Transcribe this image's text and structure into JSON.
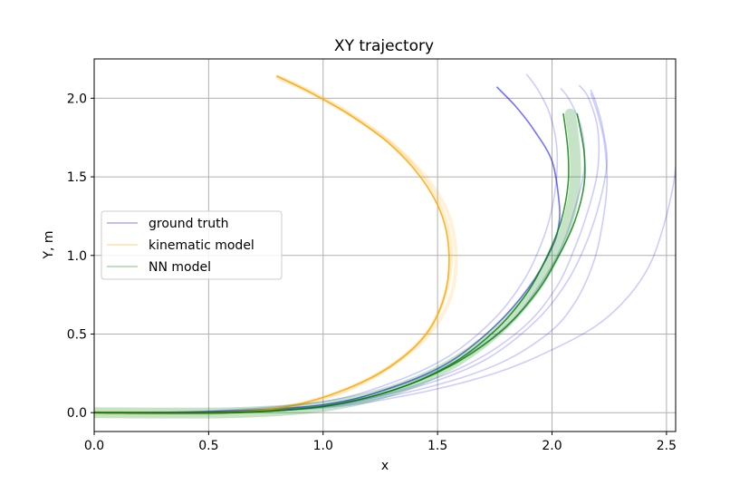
{
  "chart_data": {
    "type": "line",
    "title": "XY trajectory",
    "xlabel": "x",
    "ylabel": "Y, m",
    "xlim": [
      0.0,
      2.54
    ],
    "ylim": [
      -0.12,
      2.25
    ],
    "xticks": [
      0.0,
      0.5,
      1.0,
      1.5,
      2.0,
      2.5
    ],
    "yticks": [
      0.0,
      0.5,
      1.0,
      1.5,
      2.0
    ],
    "xtick_labels": [
      "0.0",
      "0.5",
      "1.0",
      "1.5",
      "2.0",
      "2.5"
    ],
    "ytick_labels": [
      "0.0",
      "0.5",
      "1.0",
      "1.5",
      "2.0"
    ],
    "grid": true,
    "legend_position": "center-left",
    "colors": {
      "ground_truth": "#0000ff",
      "kinematic": "#ffa500",
      "nn": "#008000"
    },
    "legend": [
      {
        "label": "ground truth",
        "color": "#0000ff"
      },
      {
        "label": "kinematic model",
        "color": "#ffa500"
      },
      {
        "label": "NN model",
        "color": "#008000"
      }
    ],
    "series": [
      {
        "group": "ground truth",
        "color": "#0000ff",
        "opacity": 0.55,
        "points": [
          [
            0,
            0
          ],
          [
            0.5,
            0.005
          ],
          [
            1.0,
            0.05
          ],
          [
            1.3,
            0.16
          ],
          [
            1.55,
            0.32
          ],
          [
            1.75,
            0.55
          ],
          [
            1.9,
            0.8
          ],
          [
            2.0,
            1.05
          ],
          [
            2.03,
            1.2
          ],
          [
            2.03,
            1.35
          ],
          [
            2.0,
            1.6
          ],
          [
            1.92,
            1.8
          ],
          [
            1.84,
            1.95
          ],
          [
            1.76,
            2.07
          ]
        ]
      },
      {
        "group": "ground truth",
        "color": "#0000ff",
        "opacity": 0.2,
        "points": [
          [
            0,
            0
          ],
          [
            0.5,
            0.01
          ],
          [
            1.0,
            0.07
          ],
          [
            1.3,
            0.19
          ],
          [
            1.55,
            0.36
          ],
          [
            1.75,
            0.6
          ],
          [
            1.88,
            0.85
          ],
          [
            1.96,
            1.1
          ],
          [
            2.0,
            1.3
          ],
          [
            2.02,
            1.5
          ],
          [
            2.02,
            1.7
          ],
          [
            1.99,
            1.9
          ],
          [
            1.94,
            2.05
          ],
          [
            1.89,
            2.15
          ]
        ]
      },
      {
        "group": "ground truth",
        "color": "#0000ff",
        "opacity": 0.2,
        "points": [
          [
            0,
            0
          ],
          [
            0.5,
            0.008
          ],
          [
            1.0,
            0.05
          ],
          [
            1.35,
            0.18
          ],
          [
            1.62,
            0.36
          ],
          [
            1.82,
            0.58
          ],
          [
            1.95,
            0.82
          ],
          [
            2.04,
            1.05
          ],
          [
            2.1,
            1.3
          ],
          [
            2.14,
            1.55
          ],
          [
            2.13,
            1.8
          ],
          [
            2.08,
            1.98
          ],
          [
            2.04,
            2.06
          ]
        ]
      },
      {
        "group": "ground truth",
        "color": "#0000ff",
        "opacity": 0.2,
        "points": [
          [
            0,
            0
          ],
          [
            0.5,
            0.006
          ],
          [
            1.0,
            0.04
          ],
          [
            1.35,
            0.15
          ],
          [
            1.65,
            0.32
          ],
          [
            1.88,
            0.55
          ],
          [
            2.02,
            0.8
          ],
          [
            2.1,
            1.05
          ],
          [
            2.16,
            1.3
          ],
          [
            2.2,
            1.55
          ],
          [
            2.2,
            1.8
          ],
          [
            2.16,
            2.0
          ],
          [
            2.12,
            2.08
          ]
        ]
      },
      {
        "group": "ground truth",
        "color": "#0000ff",
        "opacity": 0.2,
        "points": [
          [
            0,
            0
          ],
          [
            0.5,
            0.006
          ],
          [
            1.0,
            0.04
          ],
          [
            1.4,
            0.16
          ],
          [
            1.7,
            0.33
          ],
          [
            1.92,
            0.57
          ],
          [
            2.06,
            0.82
          ],
          [
            2.15,
            1.08
          ],
          [
            2.21,
            1.35
          ],
          [
            2.24,
            1.6
          ],
          [
            2.22,
            1.82
          ],
          [
            2.19,
            1.98
          ],
          [
            2.17,
            2.05
          ]
        ]
      },
      {
        "group": "ground truth",
        "color": "#0000ff",
        "opacity": 0.2,
        "points": [
          [
            0,
            0
          ],
          [
            0.5,
            0.005
          ],
          [
            1.0,
            0.035
          ],
          [
            1.4,
            0.14
          ],
          [
            1.75,
            0.3
          ],
          [
            1.98,
            0.5
          ],
          [
            2.1,
            0.7
          ],
          [
            2.18,
            0.95
          ],
          [
            2.22,
            1.2
          ],
          [
            2.24,
            1.45
          ],
          [
            2.23,
            1.7
          ],
          [
            2.2,
            1.9
          ],
          [
            2.17,
            2.03
          ]
        ]
      },
      {
        "group": "ground truth",
        "color": "#0000ff",
        "opacity": 0.2,
        "points": [
          [
            0,
            0
          ],
          [
            0.5,
            0.005
          ],
          [
            1.0,
            0.03
          ],
          [
            1.4,
            0.12
          ],
          [
            1.75,
            0.25
          ],
          [
            2.0,
            0.4
          ],
          [
            2.2,
            0.56
          ],
          [
            2.34,
            0.75
          ],
          [
            2.43,
            0.95
          ],
          [
            2.49,
            1.2
          ],
          [
            2.53,
            1.45
          ],
          [
            2.55,
            1.7
          ],
          [
            2.56,
            1.85
          ]
        ]
      },
      {
        "group": "kinematic model",
        "color": "#ffa500",
        "opacity": 0.18,
        "width": 4,
        "points": [
          [
            0,
            0
          ],
          [
            0.55,
            0.0
          ],
          [
            0.85,
            0.04
          ],
          [
            1.1,
            0.14
          ],
          [
            1.3,
            0.3
          ],
          [
            1.45,
            0.5
          ],
          [
            1.53,
            0.74
          ],
          [
            1.56,
            1.0
          ],
          [
            1.53,
            1.25
          ],
          [
            1.44,
            1.49
          ],
          [
            1.3,
            1.71
          ],
          [
            1.12,
            1.9
          ],
          [
            0.95,
            2.04
          ],
          [
            0.8,
            2.14
          ]
        ]
      },
      {
        "group": "kinematic model",
        "color": "#ffa500",
        "opacity": 0.15,
        "width": 4,
        "points": [
          [
            0,
            0
          ],
          [
            0.55,
            0.0
          ],
          [
            0.85,
            0.04
          ],
          [
            1.1,
            0.15
          ],
          [
            1.31,
            0.31
          ],
          [
            1.47,
            0.51
          ],
          [
            1.56,
            0.75
          ],
          [
            1.58,
            1.0
          ],
          [
            1.55,
            1.25
          ],
          [
            1.46,
            1.48
          ],
          [
            1.31,
            1.7
          ],
          [
            1.12,
            1.89
          ],
          [
            0.95,
            2.03
          ],
          [
            0.8,
            2.13
          ]
        ]
      },
      {
        "group": "kinematic model",
        "color": "#ffa500",
        "opacity": 0.85,
        "points": [
          [
            0,
            0
          ],
          [
            0.55,
            0.0
          ],
          [
            0.85,
            0.04
          ],
          [
            1.1,
            0.15
          ],
          [
            1.3,
            0.3
          ],
          [
            1.45,
            0.5
          ],
          [
            1.53,
            0.74
          ],
          [
            1.55,
            1.0
          ],
          [
            1.52,
            1.25
          ],
          [
            1.43,
            1.49
          ],
          [
            1.29,
            1.71
          ],
          [
            1.11,
            1.9
          ],
          [
            0.94,
            2.04
          ],
          [
            0.8,
            2.14
          ]
        ]
      },
      {
        "group": "NN model",
        "color": "#008000",
        "opacity": 0.22,
        "width": 12,
        "points": [
          [
            0,
            0
          ],
          [
            0.6,
            0.0
          ],
          [
            1.0,
            0.04
          ],
          [
            1.3,
            0.14
          ],
          [
            1.55,
            0.3
          ],
          [
            1.76,
            0.52
          ],
          [
            1.91,
            0.76
          ],
          [
            2.01,
            1.0
          ],
          [
            2.07,
            1.22
          ],
          [
            2.1,
            1.45
          ],
          [
            2.1,
            1.66
          ],
          [
            2.08,
            1.9
          ]
        ]
      },
      {
        "group": "NN model",
        "color": "#008000",
        "opacity": 0.8,
        "points": [
          [
            0,
            0
          ],
          [
            0.6,
            0.0
          ],
          [
            1.0,
            0.04
          ],
          [
            1.3,
            0.14
          ],
          [
            1.55,
            0.3
          ],
          [
            1.75,
            0.52
          ],
          [
            1.89,
            0.76
          ],
          [
            1.98,
            1.0
          ],
          [
            2.04,
            1.22
          ],
          [
            2.07,
            1.45
          ],
          [
            2.07,
            1.66
          ],
          [
            2.05,
            1.9
          ]
        ]
      },
      {
        "group": "NN model",
        "color": "#008000",
        "opacity": 0.8,
        "points": [
          [
            0,
            0
          ],
          [
            0.6,
            0.0
          ],
          [
            1.0,
            0.04
          ],
          [
            1.3,
            0.14
          ],
          [
            1.56,
            0.3
          ],
          [
            1.78,
            0.52
          ],
          [
            1.93,
            0.76
          ],
          [
            2.03,
            1.0
          ],
          [
            2.1,
            1.22
          ],
          [
            2.14,
            1.45
          ],
          [
            2.14,
            1.66
          ],
          [
            2.11,
            1.9
          ]
        ]
      }
    ]
  }
}
